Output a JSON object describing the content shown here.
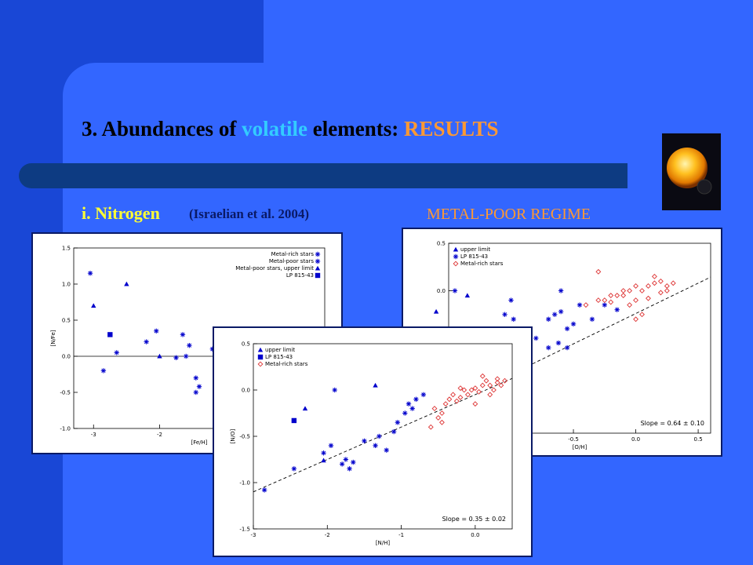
{
  "slide": {
    "title_parts": [
      "3. Abundances of ",
      "volatile",
      " elements: ",
      "RESULTS"
    ],
    "subtitle": "i. Nitrogen",
    "citation": "(Israelian et al. 2004)",
    "regime_label": "METAL-POOR REGIME",
    "image_icon": "sun-planet-icon"
  },
  "colors": {
    "background": "#3366ff",
    "dark_bar": "#1947d6",
    "rule": "#0d3b82",
    "title": "#000000",
    "volatile": "#33ccff",
    "results": "#ff9933",
    "subtitle": "#ffff33",
    "citation": "#0a1a66",
    "metal_poor": "#0000cc",
    "metal_rich": "#dd3333"
  },
  "chart_data": [
    {
      "type": "scatter",
      "xlabel": "[Fe/H]",
      "ylabel": "[N/Fe]",
      "xlim": [
        -3.3,
        0.5
      ],
      "ylim": [
        -1.0,
        1.5
      ],
      "xticks": [
        -3,
        -2
      ],
      "yticks": [
        -1.0,
        -0.5,
        0.0,
        0.5,
        1.0,
        1.5
      ],
      "grid": false,
      "hline": 0.0,
      "legend_position": "top-right",
      "legend": [
        "Metal-rich stars",
        "Metal-poor stars",
        "Metal-poor stars, upper limit",
        "LP 815-43"
      ],
      "series": [
        {
          "name": "Metal-poor stars",
          "marker": "asterisk",
          "color": "#0000cc",
          "x": [
            -3.05,
            -2.85,
            -2.65,
            -2.2,
            -2.05,
            -1.75,
            -1.6,
            -1.65,
            -1.55,
            -1.45,
            -1.45,
            -1.4,
            -1.2,
            -1.05,
            -0.95
          ],
          "y": [
            1.15,
            -0.2,
            0.05,
            0.2,
            0.35,
            -0.02,
            0.0,
            0.3,
            0.15,
            -0.3,
            -0.5,
            -0.42,
            0.1,
            -0.2,
            0.05
          ]
        },
        {
          "name": "Metal-poor stars, upper limit",
          "marker": "triangle",
          "color": "#0000cc",
          "x": [
            -3.0,
            -2.5,
            -2.0
          ],
          "y": [
            0.7,
            1.0,
            0.0
          ]
        },
        {
          "name": "LP 815-43",
          "marker": "square",
          "color": "#0000cc",
          "x": [
            -2.75
          ],
          "y": [
            0.3
          ]
        }
      ]
    },
    {
      "type": "scatter",
      "xlabel": "[O/H]",
      "ylabel": "",
      "xlim": [
        -1.5,
        0.6
      ],
      "ylim": [
        -1.5,
        0.5
      ],
      "xticks": [
        -1.0,
        -0.5,
        0.0,
        0.5
      ],
      "yticks": [
        0.0,
        0.5
      ],
      "grid": false,
      "legend_position": "top-left",
      "legend": [
        "upper limit",
        "LP 815-43",
        "Metal-rich stars"
      ],
      "annotation": "Slope = 0.64 ± 0.10",
      "fit_line": {
        "slope": 0.64,
        "x": [
          -1.5,
          0.6
        ]
      },
      "series": [
        {
          "name": "upper limit",
          "marker": "triangle",
          "color": "#0000cc",
          "x": [
            -1.6,
            -1.35
          ],
          "y": [
            -0.22,
            -0.05
          ]
        },
        {
          "name": "Metal-poor stars",
          "marker": "asterisk",
          "color": "#0000cc",
          "x": [
            -1.45,
            -1.0,
            -1.05,
            -0.98,
            -0.8,
            -0.7,
            -0.62,
            -0.55,
            -0.35,
            -0.7,
            -0.65,
            -0.6,
            -0.6,
            -0.45,
            -0.5,
            -0.55,
            -0.25,
            -0.15
          ],
          "y": [
            0.0,
            -0.1,
            -0.25,
            -0.3,
            -0.5,
            -0.6,
            -0.55,
            -0.6,
            -0.3,
            -0.3,
            -0.25,
            -0.22,
            0.0,
            -0.15,
            -0.35,
            -0.4,
            -0.15,
            -0.2
          ]
        },
        {
          "name": "Metal-rich stars",
          "marker": "diamond",
          "color": "#dd3333",
          "x": [
            -0.4,
            -0.3,
            -0.2,
            -0.15,
            -0.1,
            -0.05,
            0.0,
            0.05,
            0.1,
            0.15,
            0.2,
            0.25,
            0.3,
            -0.25,
            -0.1,
            0.0,
            0.1,
            0.2,
            0.05,
            0.15,
            -0.05,
            0.25,
            -0.3,
            0.0,
            -0.2
          ],
          "y": [
            -0.15,
            -0.1,
            -0.05,
            -0.05,
            0.0,
            0.0,
            0.05,
            0.0,
            0.05,
            0.08,
            0.1,
            0.05,
            0.08,
            -0.1,
            -0.05,
            -0.1,
            -0.08,
            -0.02,
            -0.25,
            0.15,
            -0.15,
            0.0,
            0.2,
            -0.3,
            -0.12
          ]
        }
      ]
    },
    {
      "type": "scatter",
      "xlabel": "[N/H]",
      "ylabel": "[N/O]",
      "xlim": [
        -3.0,
        0.5
      ],
      "ylim": [
        -1.5,
        0.5
      ],
      "xticks": [
        -3,
        -2,
        -1,
        0
      ],
      "yticks": [
        -1.5,
        -1.0,
        -0.5,
        0.0,
        0.5
      ],
      "grid": false,
      "legend_position": "top-left",
      "legend": [
        "upper limit",
        "LP 815-43",
        "Metal-rich stars"
      ],
      "annotation": "Slope = 0.35 ± 0.02",
      "fit_line": {
        "slope": 0.35,
        "x": [
          -3.0,
          0.5
        ]
      },
      "series": [
        {
          "name": "upper limit",
          "marker": "triangle",
          "color": "#0000cc",
          "x": [
            -2.3,
            -1.35,
            -2.05
          ],
          "y": [
            -0.2,
            0.05,
            -0.76
          ]
        },
        {
          "name": "LP 815-43",
          "marker": "square",
          "color": "#0000cc",
          "x": [
            -2.45
          ],
          "y": [
            -0.33
          ]
        },
        {
          "name": "Metal-poor stars",
          "marker": "asterisk",
          "color": "#0000cc",
          "x": [
            -2.85,
            -2.45,
            -2.05,
            -1.95,
            -1.8,
            -1.75,
            -1.7,
            -1.65,
            -1.5,
            -1.35,
            -1.3,
            -1.2,
            -1.1,
            -1.05,
            -0.95,
            -0.9,
            -0.85,
            -0.8,
            -0.7,
            -1.9
          ],
          "y": [
            -1.08,
            -0.85,
            -0.68,
            -0.6,
            -0.8,
            -0.75,
            -0.85,
            -0.78,
            -0.55,
            -0.6,
            -0.5,
            -0.65,
            -0.45,
            -0.35,
            -0.25,
            -0.15,
            -0.2,
            -0.1,
            -0.05,
            0.0
          ]
        },
        {
          "name": "Metal-rich stars",
          "marker": "diamond",
          "color": "#dd3333",
          "x": [
            -0.6,
            -0.5,
            -0.45,
            -0.4,
            -0.35,
            -0.3,
            -0.25,
            -0.2,
            -0.15,
            -0.1,
            -0.05,
            0.0,
            0.05,
            0.1,
            0.15,
            0.2,
            0.25,
            0.3,
            0.35,
            0.4,
            -0.55,
            -0.45,
            0.0,
            0.2,
            -0.2,
            0.1,
            0.3
          ],
          "y": [
            -0.4,
            -0.3,
            -0.35,
            -0.15,
            -0.1,
            -0.05,
            -0.12,
            -0.08,
            0.0,
            -0.05,
            0.0,
            0.02,
            -0.02,
            0.05,
            0.1,
            0.05,
            0.0,
            0.08,
            0.05,
            0.1,
            -0.2,
            -0.25,
            -0.15,
            -0.05,
            0.02,
            0.15,
            0.12
          ]
        }
      ]
    }
  ]
}
